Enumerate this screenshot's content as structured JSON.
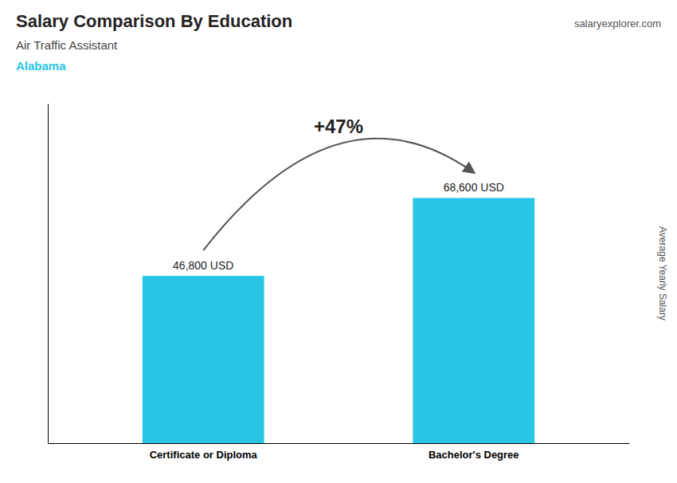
{
  "chart_data": {
    "type": "bar",
    "title": "Salary Comparison By Education",
    "subtitle": "Air Traffic Assistant",
    "ylabel": "Average Yearly Salary",
    "annotations": [
      "Alabama",
      "+47%",
      "salaryexplorer.com"
    ],
    "categories": [
      "Certificate or Diploma",
      "Bachelor's Degree"
    ],
    "values": [
      46800,
      68600
    ],
    "value_labels": [
      "46,800 USD",
      "68,600 USD"
    ],
    "data_labels": true,
    "color": "#28c5e5",
    "ylim": [
      0,
      95000
    ],
    "tick_labels": "x",
    "grid": false
  }
}
